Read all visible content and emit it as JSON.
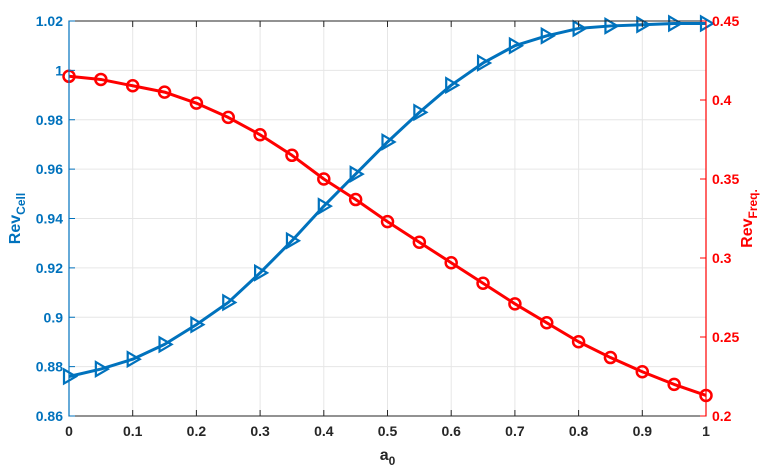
{
  "chart_data": {
    "type": "line",
    "title": "",
    "xlabel": {
      "base": "a",
      "sub": "0"
    },
    "x_ticks": [
      "0",
      "0.1",
      "0.2",
      "0.3",
      "0.4",
      "0.5",
      "0.6",
      "0.7",
      "0.8",
      "0.9",
      "1"
    ],
    "xlim": [
      0,
      1
    ],
    "y_left": {
      "label": {
        "base": "Rev",
        "sub": "Cell"
      },
      "ticks": [
        "0.86",
        "0.88",
        "0.9",
        "0.92",
        "0.94",
        "0.96",
        "0.98",
        "1",
        "1.02"
      ],
      "lim": [
        0.86,
        1.02
      ],
      "color": "#0072BD"
    },
    "y_right": {
      "label": {
        "base": "Rev",
        "sub": "Freq."
      },
      "ticks": [
        "0.2",
        "0.25",
        "0.3",
        "0.35",
        "0.4",
        "0.45"
      ],
      "lim": [
        0.2,
        0.45
      ],
      "color": "#FF0000"
    },
    "grid": true,
    "series": [
      {
        "axis": "left",
        "marker": "triangle-right",
        "color": "#0072BD",
        "x": [
          0,
          0.05,
          0.1,
          0.15,
          0.2,
          0.25,
          0.3,
          0.35,
          0.4,
          0.45,
          0.5,
          0.55,
          0.6,
          0.65,
          0.7,
          0.75,
          0.8,
          0.85,
          0.9,
          0.95,
          1
        ],
        "y": [
          0.876,
          0.879,
          0.883,
          0.889,
          0.897,
          0.906,
          0.918,
          0.931,
          0.945,
          0.958,
          0.971,
          0.983,
          0.994,
          1.003,
          1.01,
          1.014,
          1.017,
          1.018,
          1.0185,
          1.019,
          1.019
        ]
      },
      {
        "axis": "right",
        "marker": "circle",
        "color": "#FF0000",
        "x": [
          0,
          0.05,
          0.1,
          0.15,
          0.2,
          0.25,
          0.3,
          0.35,
          0.4,
          0.45,
          0.5,
          0.55,
          0.6,
          0.65,
          0.7,
          0.75,
          0.8,
          0.85,
          0.9,
          0.95,
          1
        ],
        "y": [
          0.415,
          0.413,
          0.409,
          0.405,
          0.398,
          0.389,
          0.378,
          0.365,
          0.35,
          0.337,
          0.323,
          0.31,
          0.297,
          0.284,
          0.271,
          0.259,
          0.247,
          0.237,
          0.228,
          0.22,
          0.213
        ]
      }
    ]
  }
}
